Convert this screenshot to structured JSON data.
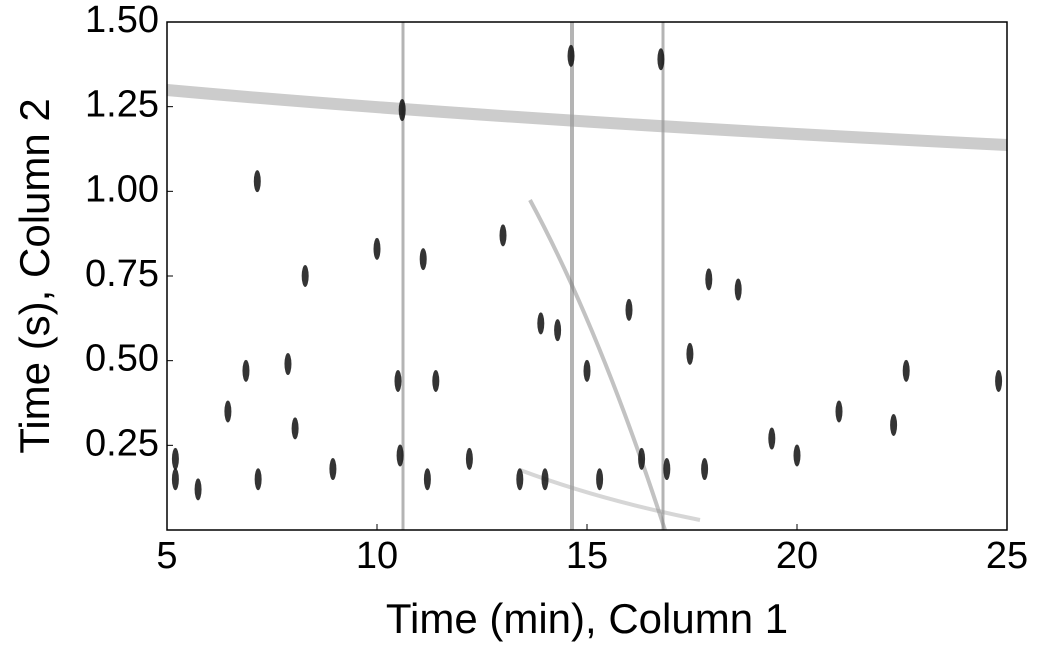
{
  "chart_data": {
    "type": "scatter",
    "x_label": "Time (min), Column 1",
    "y_label": "Time (s), Column 2",
    "xlim": [
      5,
      25
    ],
    "xticks": [
      5,
      10,
      15,
      20,
      25
    ],
    "ylim": [
      0,
      1.5
    ],
    "yticks": [
      0.25,
      {
        "value": 0.5,
        "label": "0.50"
      },
      0.75,
      {
        "value": 1,
        "label": "1.00"
      },
      1.25,
      {
        "value": 1.5,
        "label": "1.50"
      }
    ],
    "color": "#111111",
    "x": [
      10.6,
      14.62,
      16.76,
      8.29,
      10.0,
      11.1,
      13.0,
      13.9,
      14.3,
      15.0,
      6.88,
      7.88,
      10.5,
      11.4,
      17.45,
      17.9,
      18.6,
      19.4,
      20.0,
      22.3,
      24.8,
      5.2,
      5.2,
      5.74,
      6.45,
      7.17,
      8.05,
      8.95,
      10.55,
      11.2,
      12.2,
      13.4,
      14.0,
      15.3,
      16.3,
      16.9,
      17.8,
      22.6,
      21.0,
      16.0,
      7.15
    ],
    "values": [
      1.24,
      1.4,
      1.39,
      0.75,
      0.83,
      0.8,
      0.87,
      0.61,
      0.59,
      0.47,
      0.47,
      0.49,
      0.44,
      0.44,
      0.52,
      0.74,
      0.71,
      0.27,
      0.22,
      0.31,
      0.44,
      0.21,
      0.15,
      0.12,
      0.35,
      0.15,
      0.3,
      0.18,
      0.22,
      0.15,
      0.21,
      0.15,
      0.15,
      0.15,
      0.21,
      0.18,
      0.18,
      0.47,
      0.35,
      0.65,
      1.03
    ]
  }
}
